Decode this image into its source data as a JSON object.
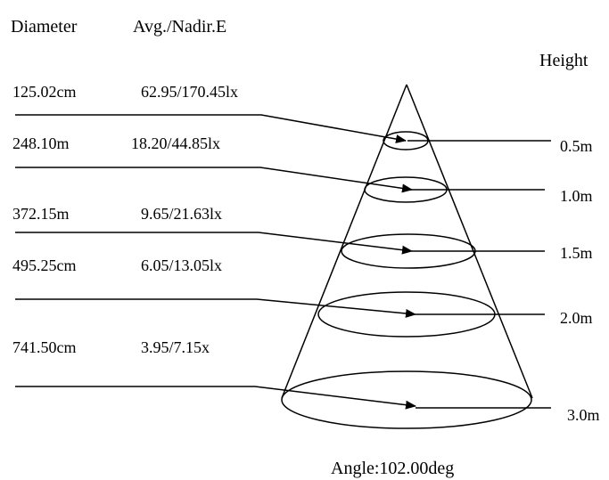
{
  "headers": {
    "diameter": "Diameter",
    "avg_nadir": "Avg./Nadir.E",
    "height": "Height"
  },
  "rows": [
    {
      "diameter": "125.02cm",
      "illuminance": "62.95/170.45lx",
      "height": "0.5m"
    },
    {
      "diameter": "248.10m",
      "illuminance": "18.20/44.85lx",
      "height": "1.0m"
    },
    {
      "diameter": "372.15m",
      "illuminance": "9.65/21.63lx",
      "height": "1.5m"
    },
    {
      "diameter": "495.25cm",
      "illuminance": "6.05/13.05lx",
      "height": "2.0m"
    },
    {
      "diameter": "741.50cm",
      "illuminance": "3.95/7.15x",
      "height": "3.0m"
    }
  ],
  "angle": "Angle:102.00deg"
}
